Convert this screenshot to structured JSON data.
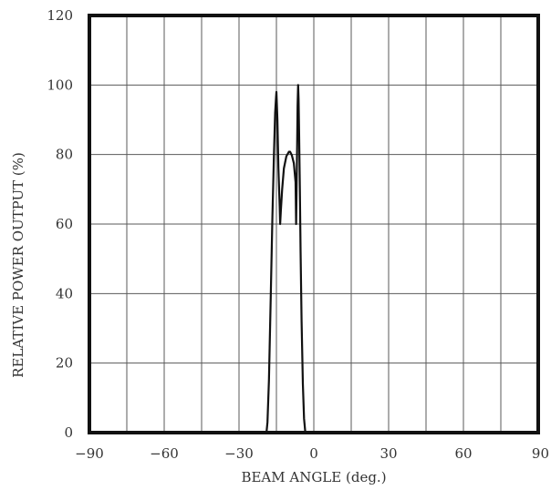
{
  "chart_data": {
    "type": "line",
    "title": "",
    "xlabel": "BEAM ANGLE (deg.)",
    "ylabel": "RELATIVE POWER OUTPUT (%)",
    "xlim": [
      -90,
      90
    ],
    "ylim": [
      0,
      120
    ],
    "x_ticks": [
      -90,
      -60,
      -30,
      0,
      30,
      60,
      90
    ],
    "x_tick_labels": [
      "−90",
      "−60",
      "−30",
      "0",
      "30",
      "60",
      "90"
    ],
    "y_ticks": [
      0,
      20,
      40,
      60,
      80,
      100,
      120
    ],
    "y_tick_labels": [
      "0",
      "20",
      "40",
      "60",
      "80",
      "100",
      "120"
    ],
    "x_grid_step": 15,
    "y_grid_step": 20,
    "grid": true,
    "legend": "none",
    "series": [
      {
        "points": [
          [
            -90,
            0
          ],
          [
            -20,
            0
          ],
          [
            -19,
            0
          ],
          [
            -18.6,
            3
          ],
          [
            -18,
            15
          ],
          [
            -17.3,
            38
          ],
          [
            -16.6,
            62
          ],
          [
            -16,
            80
          ],
          [
            -15.5,
            92
          ],
          [
            -15.2,
            96
          ],
          [
            -15,
            98
          ],
          [
            -14.6,
            90
          ],
          [
            -14.2,
            76
          ],
          [
            -13.7,
            65
          ],
          [
            -13.5,
            60
          ],
          [
            -13.2,
            64
          ],
          [
            -12.7,
            70
          ],
          [
            -12,
            76
          ],
          [
            -11,
            79.5
          ],
          [
            -10,
            80.8
          ],
          [
            -9.5,
            80.8
          ],
          [
            -8.8,
            79.8
          ],
          [
            -8,
            77.5
          ],
          [
            -7.3,
            72
          ],
          [
            -7.1,
            60
          ],
          [
            -6.9,
            70
          ],
          [
            -6.7,
            82
          ],
          [
            -6.5,
            94
          ],
          [
            -6.3,
            100
          ],
          [
            -6.1,
            96
          ],
          [
            -5.9,
            86
          ],
          [
            -5.6,
            70
          ],
          [
            -5.3,
            52
          ],
          [
            -4.9,
            32
          ],
          [
            -4.4,
            14
          ],
          [
            -3.9,
            4
          ],
          [
            -3.4,
            0
          ],
          [
            -3,
            0
          ],
          [
            90,
            0
          ]
        ],
        "color": "#111111"
      }
    ]
  }
}
